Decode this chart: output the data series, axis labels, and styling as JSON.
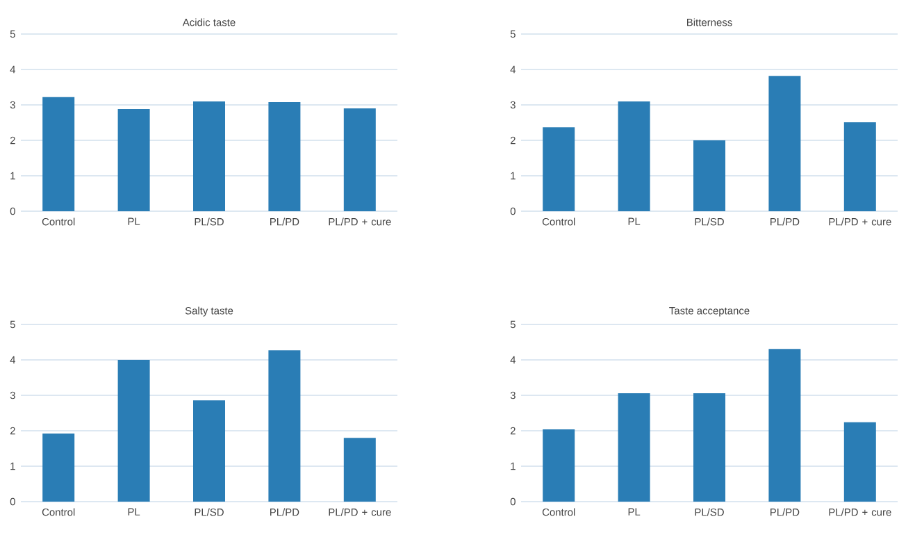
{
  "chart_data": [
    {
      "type": "bar",
      "title": "Acidic taste",
      "categories": [
        "Control",
        "PL",
        "PL/SD",
        "PL/PD",
        "PL/PD + cure"
      ],
      "values": [
        3.22,
        2.88,
        3.1,
        3.08,
        2.9
      ],
      "color": "#2a7db5",
      "ylim": [
        0,
        5
      ],
      "yticks": [
        0,
        1,
        2,
        3,
        4,
        5
      ],
      "grid": "y"
    },
    {
      "type": "bar",
      "title": "Bitterness",
      "categories": [
        "Control",
        "PL",
        "PL/SD",
        "PL/PD",
        "PL/PD + cure"
      ],
      "values": [
        2.37,
        3.1,
        2.0,
        3.82,
        2.51
      ],
      "color": "#2a7db5",
      "ylim": [
        0,
        5
      ],
      "yticks": [
        0,
        1,
        2,
        3,
        4,
        5
      ],
      "grid": "y"
    },
    {
      "type": "bar",
      "title": "Salty taste",
      "categories": [
        "Control",
        "PL",
        "PL/SD",
        "PL/PD",
        "PL/PD + cure"
      ],
      "values": [
        1.92,
        4.0,
        2.86,
        4.27,
        1.8
      ],
      "color": "#2a7db5",
      "ylim": [
        0,
        5
      ],
      "yticks": [
        0,
        1,
        2,
        3,
        4,
        5
      ],
      "grid": "y"
    },
    {
      "type": "bar",
      "title": "Taste acceptance",
      "categories": [
        "Control",
        "PL",
        "PL/SD",
        "PL/PD",
        "PL/PD + cure"
      ],
      "values": [
        2.04,
        3.06,
        3.06,
        4.31,
        2.24
      ],
      "color": "#2a7db5",
      "ylim": [
        0,
        5
      ],
      "yticks": [
        0,
        1,
        2,
        3,
        4,
        5
      ],
      "grid": "y"
    }
  ]
}
